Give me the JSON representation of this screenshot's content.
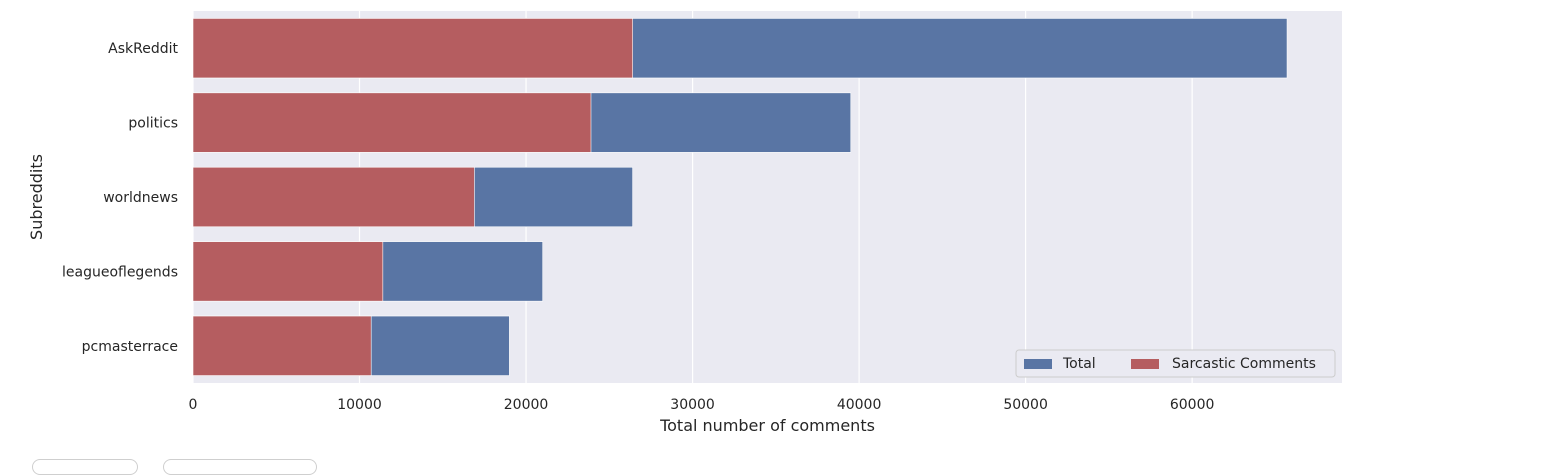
{
  "chart_data": {
    "type": "bar",
    "orientation": "horizontal",
    "overlay": true,
    "categories": [
      "AskReddit",
      "politics",
      "worldnews",
      "leagueoflegends",
      "pcmasterrace"
    ],
    "series": [
      {
        "name": "Total",
        "color": "#5975a4",
        "values": [
          65700,
          39500,
          26400,
          21000,
          19000
        ]
      },
      {
        "name": "Sarcastic Comments",
        "color": "#b55d60",
        "values": [
          26400,
          23900,
          16900,
          11400,
          10700
        ]
      }
    ],
    "xlabel": "Total number of comments",
    "ylabel": "Subreddits",
    "xlim": [
      0,
      69000
    ],
    "xticks": [
      0,
      10000,
      20000,
      30000,
      40000,
      50000,
      60000
    ],
    "grid": true,
    "legend_position": "lower-right"
  }
}
